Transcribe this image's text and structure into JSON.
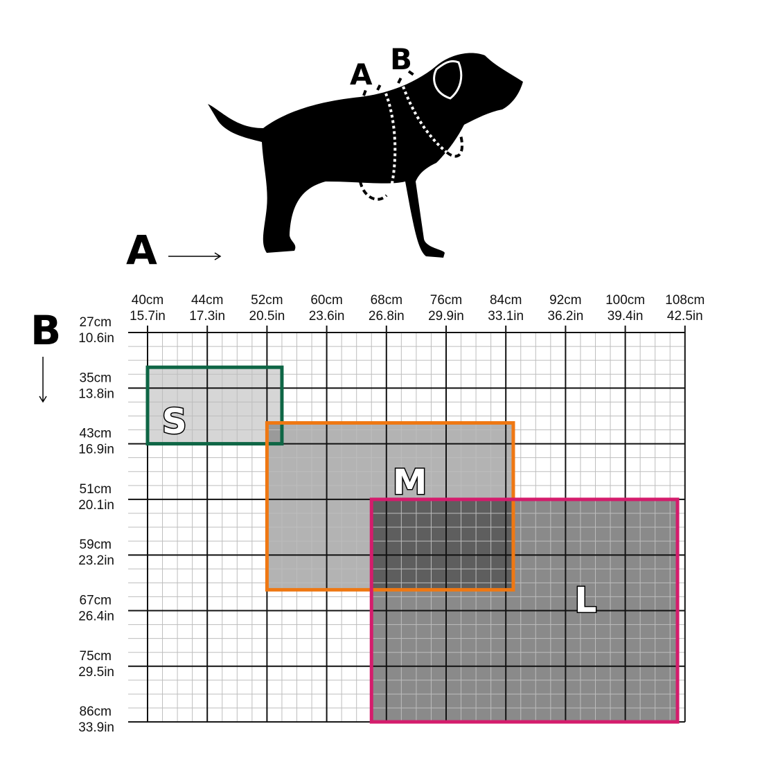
{
  "illustration": {
    "subject": "dog silhouette with measurement lines",
    "labels": {
      "a": "A",
      "b": "B"
    }
  },
  "axes": {
    "a": {
      "label": "A",
      "direction": "right",
      "ticks": [
        {
          "cm": "40cm",
          "in": "15.7in"
        },
        {
          "cm": "44cm",
          "in": "17.3in"
        },
        {
          "cm": "52cm",
          "in": "20.5in"
        },
        {
          "cm": "60cm",
          "in": "23.6in"
        },
        {
          "cm": "68cm",
          "in": "26.8in"
        },
        {
          "cm": "76cm",
          "in": "29.9in"
        },
        {
          "cm": "84cm",
          "in": "33.1in"
        },
        {
          "cm": "92cm",
          "in": "36.2in"
        },
        {
          "cm": "100cm",
          "in": "39.4in"
        },
        {
          "cm": "108cm",
          "in": "42.5in"
        }
      ]
    },
    "b": {
      "label": "B",
      "direction": "down",
      "ticks": [
        {
          "cm": "27cm",
          "in": "10.6in"
        },
        {
          "cm": "35cm",
          "in": "13.8in"
        },
        {
          "cm": "43cm",
          "in": "16.9in"
        },
        {
          "cm": "51cm",
          "in": "20.1in"
        },
        {
          "cm": "59cm",
          "in": "23.2in"
        },
        {
          "cm": "67cm",
          "in": "26.4in"
        },
        {
          "cm": "75cm",
          "in": "29.5in"
        },
        {
          "cm": "86cm",
          "in": "33.9in"
        }
      ]
    }
  },
  "sizes": [
    {
      "label": "S",
      "color": "#0e6645",
      "fill": "#d6d6d6",
      "a_range_cm": [
        40,
        54
      ],
      "b_range_cm": [
        32,
        43
      ]
    },
    {
      "label": "M",
      "color": "#ef7813",
      "fill": "#b3b3b3",
      "a_range_cm": [
        52,
        85
      ],
      "b_range_cm": [
        40,
        64
      ]
    },
    {
      "label": "L",
      "color": "#d41c6c",
      "fill": "#8a8a8a",
      "a_range_cm": [
        66,
        107
      ],
      "b_range_cm": [
        51,
        86
      ]
    }
  ],
  "colors": {
    "grid_major": "#111111",
    "grid_minor": "#bdbdbd",
    "overlap_sm": "#9a9a9a",
    "overlap_ml": "#5e5e5e"
  }
}
